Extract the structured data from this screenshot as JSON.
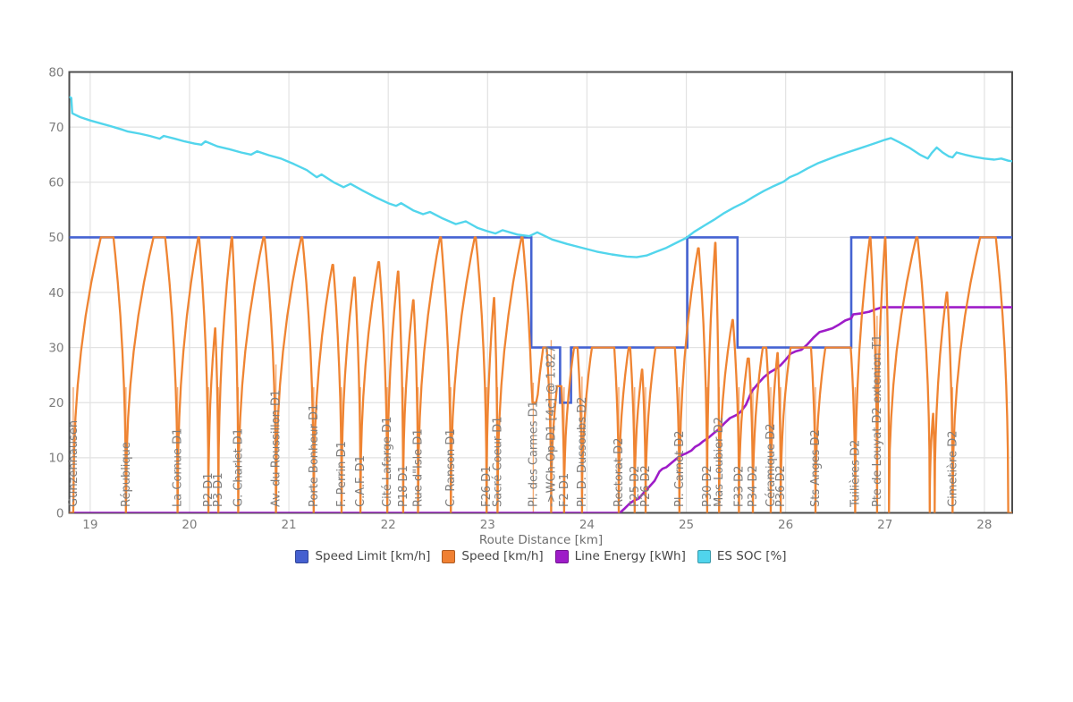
{
  "xaxis_title": "Route Distance [km]",
  "chart_data": {
    "type": "line",
    "title": "",
    "xlabel": "Route Distance [km]",
    "ylabel": "",
    "x_range": [
      18.79,
      28.28
    ],
    "y_range": [
      0,
      80
    ],
    "x_ticks": [
      19,
      20,
      21,
      22,
      23,
      24,
      25,
      26,
      27,
      28
    ],
    "y_ticks": [
      0,
      10,
      20,
      30,
      40,
      50,
      60,
      70,
      80
    ],
    "grid": true,
    "legend_position": "bottom-center",
    "legend": [
      {
        "label": "Speed Limit [km/h]",
        "color": "#4560d0"
      },
      {
        "label": "Speed [km/h]",
        "color": "#f08032"
      },
      {
        "label": "Line Energy [kWh]",
        "color": "#9e1cc8"
      },
      {
        "label": "ES SOC [%]",
        "color": "#50d4ec"
      }
    ],
    "series": {
      "speed_limit": {
        "name": "Speed Limit [km/h]",
        "color": "#4563d2",
        "points": [
          [
            18.79,
            50
          ],
          [
            23.44,
            50
          ],
          [
            23.44,
            30
          ],
          [
            23.73,
            30
          ],
          [
            23.73,
            20
          ],
          [
            23.84,
            20
          ],
          [
            23.84,
            30
          ],
          [
            25.01,
            30
          ],
          [
            25.01,
            50
          ],
          [
            25.515,
            50
          ],
          [
            25.515,
            30
          ],
          [
            26.66,
            30
          ],
          [
            26.66,
            50
          ],
          [
            28.28,
            50
          ]
        ]
      },
      "speed": {
        "name": "Speed [km/h]",
        "color": "#ef8432",
        "stops": [
          {
            "km": 18.83,
            "label": "Gunzenhausen",
            "peak": 50
          },
          {
            "km": 19.36,
            "label": "République",
            "peak": 50
          },
          {
            "km": 19.88,
            "label": "La Cornue D1",
            "peak": 50
          },
          {
            "km": 20.19,
            "label": "P2 D1",
            "peak": 33.5
          },
          {
            "km": 20.29,
            "label": "P3 D1",
            "peak": 50
          },
          {
            "km": 20.49,
            "label": "G. Charlet D1",
            "peak": 50
          },
          {
            "km": 20.87,
            "label": "Av. du Roussillon D1",
            "peak": 50
          },
          {
            "km": 21.25,
            "label": "Porte Bonheur D1",
            "peak": 45
          },
          {
            "km": 21.53,
            "label": "F. Perrin D1",
            "peak": 42.7
          },
          {
            "km": 21.72,
            "label": "C.A.F. D1",
            "peak": 45.5
          },
          {
            "km": 21.99,
            "label": "Cité Lafarge D1",
            "peak": 43.8
          },
          {
            "km": 22.15,
            "label": "P18 D1",
            "peak": 38.6
          },
          {
            "km": 22.3,
            "label": "Rue d\"Isle D1",
            "peak": 50
          },
          {
            "km": 22.63,
            "label": "C. Ranson D1",
            "peak": 50
          },
          {
            "km": 22.99,
            "label": "F26 D1",
            "peak": 39
          },
          {
            "km": 23.1,
            "label": "Sacré Coeur D1",
            "peak": 50
          },
          {
            "km": 23.46,
            "label": "Pl. des Carmes D1",
            "peak": 30,
            "vmin": 20
          },
          {
            "km": 23.64,
            "label": "->WCh-Op-D1 [4c] @ 1.827",
            "peak": 23
          },
          {
            "km": 23.77,
            "label": "F2 D1",
            "peak": 30
          },
          {
            "km": 23.95,
            "label": "Pl. D. Dussoubs D2",
            "peak": 30
          },
          {
            "km": 24.32,
            "label": "Rectorat D2",
            "peak": 30
          },
          {
            "km": 24.48,
            "label": "F25 D2",
            "peak": 26
          },
          {
            "km": 24.59,
            "label": "P26 D2",
            "peak": 30
          },
          {
            "km": 24.93,
            "label": "Pl. Carnot D2",
            "peak": 48
          },
          {
            "km": 25.21,
            "label": "P30 D2",
            "peak": 49
          },
          {
            "km": 25.33,
            "label": "Mas Loubier D2",
            "peak": 35
          },
          {
            "km": 25.53,
            "label": "F33 D2",
            "peak": 28
          },
          {
            "km": 25.67,
            "label": "P34 D2",
            "peak": 30
          },
          {
            "km": 25.85,
            "label": "Céramique D2",
            "peak": 29
          },
          {
            "km": 25.95,
            "label": "P36 D2",
            "peak": 30
          },
          {
            "km": 26.3,
            "label": "Sts Anges D2",
            "peak": 30
          },
          {
            "km": 26.7,
            "label": "Tuilières D2",
            "peak": 50
          },
          {
            "km": 26.92,
            "label": "Pte de Louyat D2 extenion T1",
            "peak": 50
          },
          {
            "km": 27.04,
            "label": "",
            "peak": 50
          },
          {
            "km": 27.45,
            "label": "",
            "peak": 18
          },
          {
            "km": 27.5,
            "label": "",
            "peak": 40
          },
          {
            "km": 27.68,
            "label": "Cimetière D2",
            "peak": 50
          },
          {
            "km": 28.24,
            "label": "",
            "peak": 0
          }
        ]
      },
      "line_energy": {
        "name": "Line Energy [kWh]",
        "color": "#9e1cc8",
        "points": [
          [
            18.79,
            0
          ],
          [
            24.33,
            0
          ],
          [
            24.38,
            0.8
          ],
          [
            24.43,
            1.7
          ],
          [
            24.47,
            2.2
          ],
          [
            24.52,
            2.6
          ],
          [
            24.56,
            3.4
          ],
          [
            24.62,
            4.6
          ],
          [
            24.68,
            5.8
          ],
          [
            24.73,
            7.5
          ],
          [
            24.76,
            8.0
          ],
          [
            24.8,
            8.3
          ],
          [
            24.86,
            9.2
          ],
          [
            24.92,
            10.1
          ],
          [
            24.97,
            10.6
          ],
          [
            25.0,
            10.8
          ],
          [
            25.05,
            11.3
          ],
          [
            25.09,
            12.0
          ],
          [
            25.13,
            12.4
          ],
          [
            25.17,
            13.0
          ],
          [
            25.22,
            13.6
          ],
          [
            25.28,
            14.5
          ],
          [
            25.33,
            15.2
          ],
          [
            25.38,
            16.2
          ],
          [
            25.44,
            17.2
          ],
          [
            25.51,
            17.8
          ],
          [
            25.55,
            18.4
          ],
          [
            25.6,
            19.6
          ],
          [
            25.66,
            22.1
          ],
          [
            25.72,
            23.4
          ],
          [
            25.78,
            24.6
          ],
          [
            25.84,
            25.5
          ],
          [
            25.89,
            26.0
          ],
          [
            25.95,
            26.8
          ],
          [
            26.0,
            27.8
          ],
          [
            26.05,
            28.9
          ],
          [
            26.1,
            29.3
          ],
          [
            26.16,
            29.6
          ],
          [
            26.22,
            30.6
          ],
          [
            26.28,
            31.8
          ],
          [
            26.34,
            32.8
          ],
          [
            26.4,
            33.1
          ],
          [
            26.47,
            33.5
          ],
          [
            26.54,
            34.2
          ],
          [
            26.6,
            34.9
          ],
          [
            26.66,
            35.3
          ],
          [
            26.68,
            36.0
          ],
          [
            26.76,
            36.2
          ],
          [
            26.84,
            36.5
          ],
          [
            26.9,
            36.9
          ],
          [
            26.97,
            37.3
          ],
          [
            28.28,
            37.3
          ]
        ]
      },
      "es_soc": {
        "name": "ES SOC [%]",
        "color": "#52d5ec",
        "points": [
          [
            18.79,
            75.5
          ],
          [
            18.81,
            75.3
          ],
          [
            18.82,
            72.5
          ],
          [
            18.9,
            71.8
          ],
          [
            19.0,
            71.2
          ],
          [
            19.1,
            70.7
          ],
          [
            19.2,
            70.2
          ],
          [
            19.33,
            69.5
          ],
          [
            19.38,
            69.2
          ],
          [
            19.5,
            68.8
          ],
          [
            19.6,
            68.4
          ],
          [
            19.7,
            67.9
          ],
          [
            19.74,
            68.4
          ],
          [
            19.85,
            67.9
          ],
          [
            19.95,
            67.4
          ],
          [
            20.05,
            67.0
          ],
          [
            20.12,
            66.8
          ],
          [
            20.16,
            67.4
          ],
          [
            20.28,
            66.5
          ],
          [
            20.4,
            66.0
          ],
          [
            20.52,
            65.4
          ],
          [
            20.62,
            65.0
          ],
          [
            20.68,
            65.6
          ],
          [
            20.8,
            64.9
          ],
          [
            20.92,
            64.3
          ],
          [
            21.05,
            63.3
          ],
          [
            21.18,
            62.2
          ],
          [
            21.28,
            60.9
          ],
          [
            21.33,
            61.4
          ],
          [
            21.45,
            60.0
          ],
          [
            21.55,
            59.1
          ],
          [
            21.62,
            59.7
          ],
          [
            21.75,
            58.4
          ],
          [
            21.88,
            57.2
          ],
          [
            22.0,
            56.2
          ],
          [
            22.08,
            55.7
          ],
          [
            22.13,
            56.2
          ],
          [
            22.25,
            54.9
          ],
          [
            22.35,
            54.2
          ],
          [
            22.42,
            54.6
          ],
          [
            22.55,
            53.4
          ],
          [
            22.68,
            52.4
          ],
          [
            22.78,
            52.9
          ],
          [
            22.9,
            51.7
          ],
          [
            23.0,
            51.1
          ],
          [
            23.08,
            50.7
          ],
          [
            23.15,
            51.3
          ],
          [
            23.3,
            50.5
          ],
          [
            23.42,
            50.2
          ],
          [
            23.5,
            50.9
          ],
          [
            23.65,
            49.6
          ],
          [
            23.8,
            48.8
          ],
          [
            23.95,
            48.1
          ],
          [
            24.1,
            47.4
          ],
          [
            24.25,
            46.9
          ],
          [
            24.4,
            46.5
          ],
          [
            24.5,
            46.4
          ],
          [
            24.6,
            46.7
          ],
          [
            24.7,
            47.4
          ],
          [
            24.8,
            48.1
          ],
          [
            24.9,
            49.0
          ],
          [
            25.0,
            49.9
          ],
          [
            25.08,
            51.0
          ],
          [
            25.18,
            52.1
          ],
          [
            25.28,
            53.2
          ],
          [
            25.38,
            54.4
          ],
          [
            25.48,
            55.4
          ],
          [
            25.58,
            56.3
          ],
          [
            25.68,
            57.4
          ],
          [
            25.78,
            58.4
          ],
          [
            25.88,
            59.3
          ],
          [
            25.98,
            60.1
          ],
          [
            26.04,
            60.9
          ],
          [
            26.12,
            61.5
          ],
          [
            26.22,
            62.5
          ],
          [
            26.32,
            63.4
          ],
          [
            26.42,
            64.1
          ],
          [
            26.52,
            64.8
          ],
          [
            26.62,
            65.4
          ],
          [
            26.72,
            66.0
          ],
          [
            26.82,
            66.6
          ],
          [
            26.92,
            67.2
          ],
          [
            27.0,
            67.7
          ],
          [
            27.06,
            68.0
          ],
          [
            27.15,
            67.2
          ],
          [
            27.25,
            66.2
          ],
          [
            27.35,
            65.0
          ],
          [
            27.43,
            64.3
          ],
          [
            27.47,
            65.3
          ],
          [
            27.52,
            66.3
          ],
          [
            27.58,
            65.4
          ],
          [
            27.64,
            64.7
          ],
          [
            27.68,
            64.5
          ],
          [
            27.72,
            65.4
          ],
          [
            27.8,
            65.0
          ],
          [
            27.9,
            64.6
          ],
          [
            28.0,
            64.3
          ],
          [
            28.1,
            64.1
          ],
          [
            28.17,
            64.3
          ],
          [
            28.24,
            63.9
          ],
          [
            28.28,
            63.8
          ]
        ]
      }
    },
    "station_marker_color": "#f4aa72",
    "colors": {
      "grid": "#e2e2e2",
      "axis_border": "#4d4d4d",
      "tick_label": "#7c7c7c",
      "station_label": "#7d7d7d",
      "axis_title": "#6e6e6e",
      "legend_text": "#454545",
      "background": "#ffffff"
    }
  }
}
